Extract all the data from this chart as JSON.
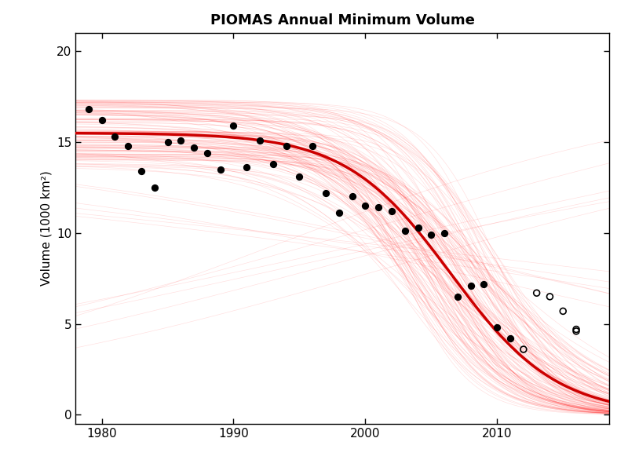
{
  "title": "PIOMAS Annual Minimum Volume",
  "xlabel": "",
  "ylabel": "Volume (1000 km²)",
  "xlim": [
    1978.0,
    2018.5
  ],
  "ylim": [
    -0.5,
    21
  ],
  "yticks": [
    0,
    5,
    10,
    15,
    20
  ],
  "xticks": [
    1980,
    1990,
    2000,
    2010
  ],
  "filled_dots": [
    [
      1979,
      16.8
    ],
    [
      1980,
      16.2
    ],
    [
      1981,
      15.3
    ],
    [
      1982,
      14.8
    ],
    [
      1983,
      13.4
    ],
    [
      1984,
      12.5
    ],
    [
      1985,
      15.0
    ],
    [
      1986,
      15.1
    ],
    [
      1987,
      14.7
    ],
    [
      1988,
      14.4
    ],
    [
      1989,
      13.5
    ],
    [
      1990,
      15.9
    ],
    [
      1991,
      13.6
    ],
    [
      1992,
      15.1
    ],
    [
      1993,
      13.8
    ],
    [
      1994,
      14.8
    ],
    [
      1995,
      13.1
    ],
    [
      1996,
      14.8
    ],
    [
      1997,
      12.2
    ],
    [
      1998,
      11.1
    ],
    [
      1999,
      12.0
    ],
    [
      2000,
      11.5
    ],
    [
      2001,
      11.4
    ],
    [
      2002,
      11.2
    ],
    [
      2003,
      10.1
    ],
    [
      2004,
      10.3
    ],
    [
      2005,
      9.9
    ],
    [
      2006,
      10.0
    ],
    [
      2007,
      6.5
    ],
    [
      2008,
      7.1
    ],
    [
      2009,
      7.2
    ],
    [
      2010,
      4.8
    ],
    [
      2011,
      4.2
    ]
  ],
  "open_dots": [
    [
      2013,
      6.7
    ],
    [
      2014,
      6.5
    ],
    [
      2015,
      5.7
    ],
    [
      2016,
      4.7
    ],
    [
      2012,
      3.6
    ],
    [
      2016,
      4.6
    ]
  ],
  "fit_params": {
    "L": 15.5,
    "k": 0.25,
    "x_mid": 2006.5
  },
  "background_color": "#ffffff",
  "curve_color": "#ff0000",
  "curve_alpha": 0.12,
  "n_ensemble": 150,
  "mean_curve_color": "#cc0000",
  "mean_curve_lw": 2.5,
  "figsize": [
    8.0,
    6.0
  ],
  "dpi": 100
}
